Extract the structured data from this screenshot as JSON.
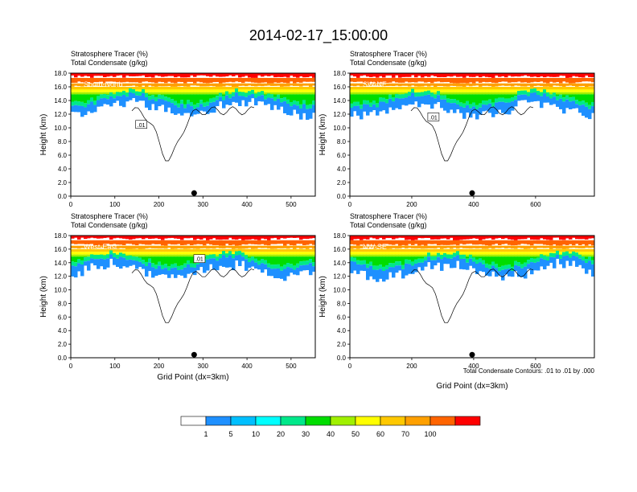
{
  "figure": {
    "title": "2014-02-17_15:00:00",
    "contour_note": "Total Condensate Contours: .01 to .01 by .000"
  },
  "chart_data": [
    {
      "type": "heatmap",
      "panel_title": "South-North",
      "header_line1": "Stratosphere Tracer   (%)",
      "header_line2": "Total Condensate   (g/kg)",
      "ylabel": "Height (km)",
      "xlabel": "",
      "xlim": [
        0,
        555
      ],
      "ylim": [
        0,
        18
      ],
      "xticks": [
        "0",
        "100",
        "200",
        "300",
        "400",
        "500"
      ],
      "yticks": [
        "0.0",
        "2.0",
        "4.0",
        "6.0",
        "8.0",
        "10.0",
        "12.0",
        "14.0",
        "16.0",
        "18.0"
      ],
      "marker_x": 280,
      "contour_label": ".01",
      "contour_label_pos": [
        160,
        10.5
      ]
    },
    {
      "type": "heatmap",
      "panel_title": "SW-NE",
      "header_line1": "Stratosphere Tracer   (%)",
      "header_line2": "Total Condensate   (g/kg)",
      "ylabel": "Height (km)",
      "xlabel": "",
      "xlim": [
        0,
        790
      ],
      "ylim": [
        0,
        18
      ],
      "xticks": [
        "0",
        "200",
        "400",
        "600"
      ],
      "yticks": [
        "0.0",
        "2.0",
        "4.0",
        "6.0",
        "8.0",
        "10.0",
        "12.0",
        "14.0",
        "16.0",
        "18.0"
      ],
      "marker_x": 395,
      "contour_label": ".01",
      "contour_label_pos": [
        270,
        11.6
      ]
    },
    {
      "type": "heatmap",
      "panel_title": "West-East",
      "header_line1": "Stratosphere Tracer   (%)",
      "header_line2": "Total Condensate   (g/kg)",
      "ylabel": "Height (km)",
      "xlabel": "Grid Point (dx=3km)",
      "xlim": [
        0,
        555
      ],
      "ylim": [
        0,
        18
      ],
      "xticks": [
        "0",
        "100",
        "200",
        "300",
        "400",
        "500"
      ],
      "yticks": [
        "0.0",
        "2.0",
        "4.0",
        "6.0",
        "8.0",
        "10.0",
        "12.0",
        "14.0",
        "16.0",
        "18.0"
      ],
      "marker_x": 280,
      "contour_label": ".01",
      "contour_label_pos": [
        292,
        14.6
      ]
    },
    {
      "type": "heatmap",
      "panel_title": "NW-SE",
      "header_line1": "Stratosphere Tracer   (%)",
      "header_line2": "Total Condensate   (g/kg)",
      "ylabel": "Height (km)",
      "xlabel": "Grid Point (dx=3km)",
      "xlim": [
        0,
        790
      ],
      "ylim": [
        0,
        18
      ],
      "xticks": [
        "0",
        "200",
        "400",
        "600"
      ],
      "yticks": [
        "0.0",
        "2.0",
        "4.0",
        "6.0",
        "8.0",
        "10.0",
        "12.0",
        "14.0",
        "16.0",
        "18.0"
      ],
      "marker_x": 395,
      "contour_label": "",
      "contour_label_pos": [
        0,
        0
      ]
    }
  ],
  "colorbar": {
    "labels": [
      "1",
      "5",
      "10",
      "20",
      "30",
      "40",
      "50",
      "60",
      "70",
      "100"
    ],
    "colors": [
      "#ffffff",
      "#1e90ff",
      "#00bfff",
      "#00ffff",
      "#00e88a",
      "#00dd00",
      "#a0f000",
      "#ffff00",
      "#ffc800",
      "#ffa000",
      "#ff6400",
      "#ff0000"
    ]
  }
}
